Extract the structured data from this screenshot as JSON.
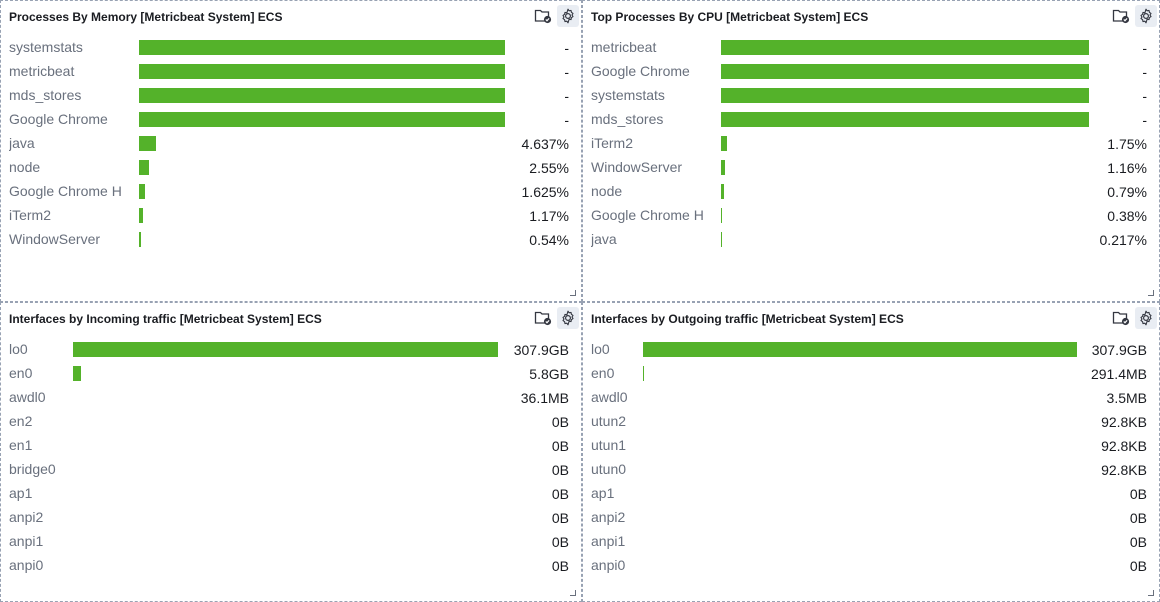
{
  "panels": [
    {
      "title": "Processes By Memory [Metricbeat System] ECS",
      "bar_scale_max": 1.0,
      "rows": [
        {
          "label": "systemstats",
          "value": "-",
          "fill": 1.0
        },
        {
          "label": "metricbeat",
          "value": "-",
          "fill": 1.0
        },
        {
          "label": "mds_stores",
          "value": "-",
          "fill": 1.0
        },
        {
          "label": "Google Chrome",
          "value": "-",
          "fill": 1.0
        },
        {
          "label": "java",
          "value": "4.637%",
          "fill": 0.046
        },
        {
          "label": "node",
          "value": "2.55%",
          "fill": 0.026
        },
        {
          "label": "Google Chrome H",
          "value": "1.625%",
          "fill": 0.016
        },
        {
          "label": "iTerm2",
          "value": "1.17%",
          "fill": 0.012
        },
        {
          "label": "WindowServer",
          "value": "0.54%",
          "fill": 0.005
        }
      ]
    },
    {
      "title": "Top Processes By CPU [Metricbeat System] ECS",
      "rows": [
        {
          "label": "metricbeat",
          "value": "-",
          "fill": 1.0
        },
        {
          "label": "Google Chrome",
          "value": "-",
          "fill": 1.0
        },
        {
          "label": "systemstats",
          "value": "-",
          "fill": 1.0
        },
        {
          "label": "mds_stores",
          "value": "-",
          "fill": 1.0
        },
        {
          "label": "iTerm2",
          "value": "1.75%",
          "fill": 0.0175
        },
        {
          "label": "WindowServer",
          "value": "1.16%",
          "fill": 0.0116
        },
        {
          "label": "node",
          "value": "0.79%",
          "fill": 0.0079
        },
        {
          "label": "Google Chrome H",
          "value": "0.38%",
          "fill": 0.0038
        },
        {
          "label": "java",
          "value": "0.217%",
          "fill": 0.0022
        }
      ]
    },
    {
      "title": "Interfaces by Incoming traffic [Metricbeat System] ECS",
      "rows": [
        {
          "label": "lo0",
          "value": "307.9GB",
          "fill": 1.0
        },
        {
          "label": "en0",
          "value": "5.8GB",
          "fill": 0.019
        },
        {
          "label": "awdl0",
          "value": "36.1MB",
          "fill": 0.0
        },
        {
          "label": "en2",
          "value": "0B",
          "fill": 0.0
        },
        {
          "label": "en1",
          "value": "0B",
          "fill": 0.0
        },
        {
          "label": "bridge0",
          "value": "0B",
          "fill": 0.0
        },
        {
          "label": "ap1",
          "value": "0B",
          "fill": 0.0
        },
        {
          "label": "anpi2",
          "value": "0B",
          "fill": 0.0
        },
        {
          "label": "anpi1",
          "value": "0B",
          "fill": 0.0
        },
        {
          "label": "anpi0",
          "value": "0B",
          "fill": 0.0
        }
      ]
    },
    {
      "title": "Interfaces by Outgoing traffic [Metricbeat System] ECS",
      "rows": [
        {
          "label": "lo0",
          "value": "307.9GB",
          "fill": 1.0
        },
        {
          "label": "en0",
          "value": "291.4MB",
          "fill": 0.001
        },
        {
          "label": "awdl0",
          "value": "3.5MB",
          "fill": 0.0
        },
        {
          "label": "utun2",
          "value": "92.8KB",
          "fill": 0.0
        },
        {
          "label": "utun1",
          "value": "92.8KB",
          "fill": 0.0
        },
        {
          "label": "utun0",
          "value": "92.8KB",
          "fill": 0.0
        },
        {
          "label": "ap1",
          "value": "0B",
          "fill": 0.0
        },
        {
          "label": "anpi2",
          "value": "0B",
          "fill": 0.0
        },
        {
          "label": "anpi1",
          "value": "0B",
          "fill": 0.0
        },
        {
          "label": "anpi0",
          "value": "0B",
          "fill": 0.0
        }
      ]
    }
  ],
  "colors": {
    "bar": "#54b22a",
    "label": "#69707d",
    "value": "#1a1c21",
    "border": "#98a2b3"
  },
  "icons": {
    "panel_menu": "folder-check-icon",
    "panel_settings": "gear-icon"
  }
}
